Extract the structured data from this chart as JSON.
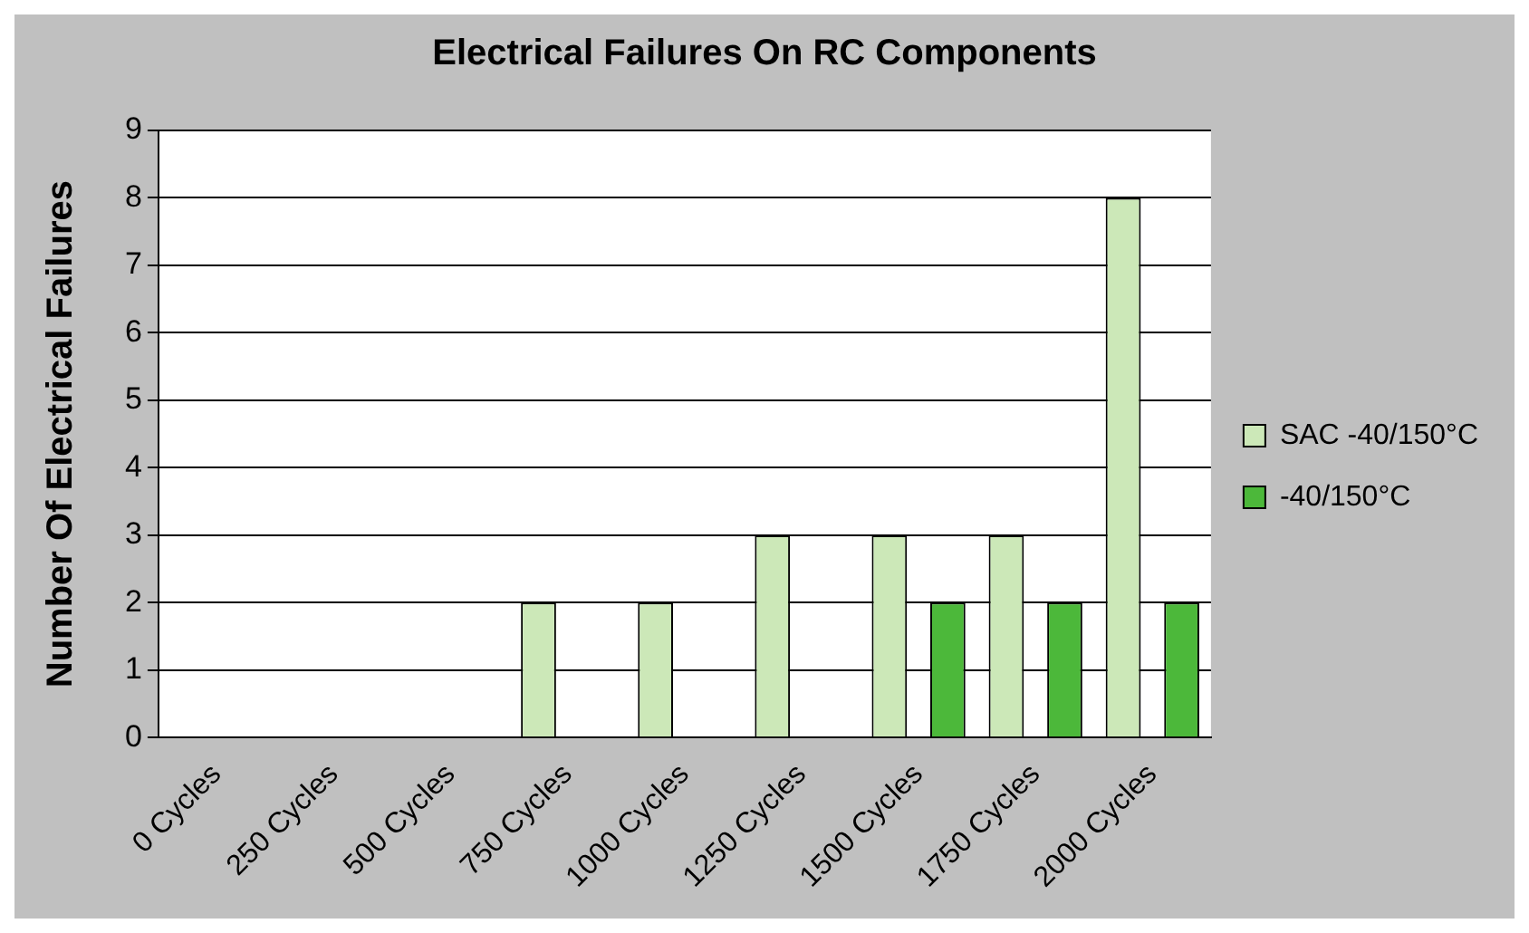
{
  "chart_data": {
    "type": "bar",
    "title": "Electrical Failures On RC Components",
    "ylabel": "Number Of Electrical Failures",
    "categories": [
      "0 Cycles",
      "250 Cycles",
      "500 Cycles",
      "750 Cycles",
      "1000 Cycles",
      "1250 Cycles",
      "1500 Cycles",
      "1750 Cycles",
      "2000 Cycles"
    ],
    "series": [
      {
        "name": "SAC -40/150°C",
        "color": "#cce8b8",
        "values": [
          0,
          0,
          0,
          2,
          2,
          3,
          3,
          3,
          8
        ]
      },
      {
        "name": "-40/150°C",
        "color": "#4cb83a",
        "values": [
          0,
          0,
          0,
          0,
          0,
          0,
          2,
          2,
          2
        ]
      }
    ],
    "ylim": [
      0,
      9
    ],
    "yticks": [
      0,
      1,
      2,
      3,
      4,
      5,
      6,
      7,
      8,
      9
    ],
    "grid": "y",
    "legend": "right"
  }
}
